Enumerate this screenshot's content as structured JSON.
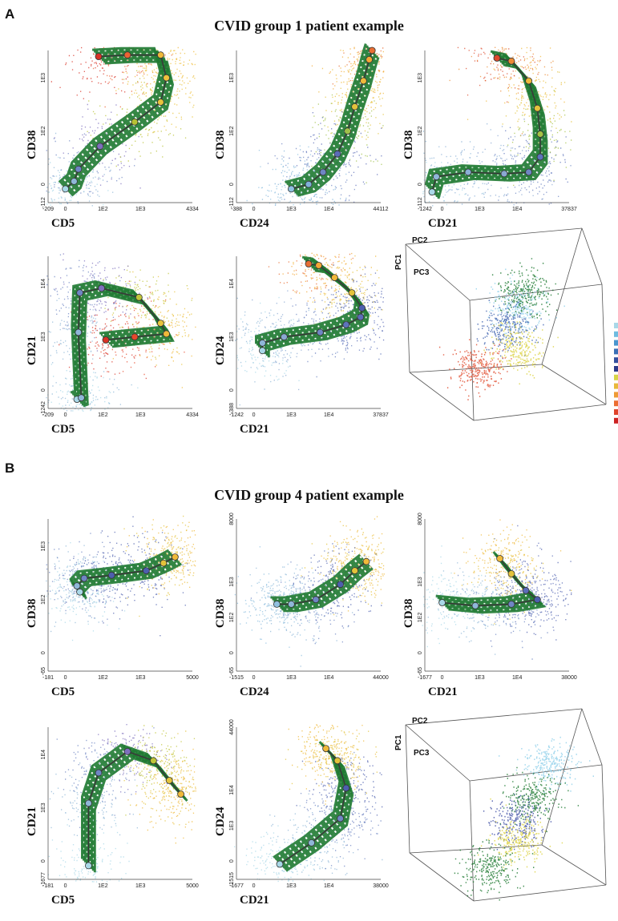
{
  "panels": [
    {
      "letter": "A",
      "title": "CVID group 1 patient example",
      "chart_data": [
        {
          "type": "scatter",
          "xlabel": "CD5",
          "ylabel": "CD38",
          "xticks": [
            "-209",
            "0",
            "1E2",
            "1E3",
            "4334"
          ],
          "yticks": [
            "-112",
            "0",
            "1E2",
            "1E3"
          ],
          "trajectory": [
            [
              0.12,
              0.09
            ],
            [
              0.18,
              0.14
            ],
            [
              0.21,
              0.22
            ],
            [
              0.36,
              0.37
            ],
            [
              0.6,
              0.53
            ],
            [
              0.78,
              0.66
            ],
            [
              0.82,
              0.82
            ],
            [
              0.78,
              0.97
            ],
            [
              0.55,
              0.97
            ],
            [
              0.35,
              0.96
            ]
          ],
          "trajectory_colors": [
            "#a9d8e8",
            "#8fb7d8",
            "#6f86c4",
            "#7e6fbd",
            "#b8c234",
            "#e7c43c",
            "#efc23d",
            "#f0b93a",
            "#ec6433",
            "#d93226"
          ]
        },
        {
          "type": "scatter",
          "xlabel": "CD24",
          "ylabel": "CD38",
          "xticks": [
            "-388",
            "0",
            "1E3",
            "1E4",
            "44112"
          ],
          "yticks": [
            "-112",
            "0",
            "1E2",
            "1E3"
          ],
          "trajectory": [
            [
              0.38,
              0.09
            ],
            [
              0.5,
              0.12
            ],
            [
              0.6,
              0.2
            ],
            [
              0.7,
              0.32
            ],
            [
              0.77,
              0.47
            ],
            [
              0.82,
              0.63
            ],
            [
              0.88,
              0.8
            ],
            [
              0.92,
              0.94
            ],
            [
              0.94,
              1.0
            ]
          ],
          "trajectory_colors": [
            "#8fc0df",
            "#7fb0d8",
            "#6f86c4",
            "#5b6cb8",
            "#a0c14a",
            "#e3c33b",
            "#f0b93a",
            "#f3a735",
            "#e86e33"
          ]
        },
        {
          "type": "scatter",
          "xlabel": "CD21",
          "ylabel": "CD38",
          "xticks": [
            "-1242",
            "0",
            "1E3",
            "1E4",
            "37837"
          ],
          "yticks": [
            "-112",
            "0",
            "1E2",
            "1E3"
          ],
          "trajectory": [
            [
              0.05,
              0.07
            ],
            [
              0.08,
              0.17
            ],
            [
              0.3,
              0.2
            ],
            [
              0.55,
              0.19
            ],
            [
              0.72,
              0.2
            ],
            [
              0.8,
              0.3
            ],
            [
              0.8,
              0.45
            ],
            [
              0.78,
              0.62
            ],
            [
              0.72,
              0.8
            ],
            [
              0.6,
              0.93
            ],
            [
              0.5,
              0.95
            ]
          ],
          "trajectory_colors": [
            "#a9d8e8",
            "#8fb7d8",
            "#8ab0d6",
            "#8aa8d2",
            "#6f86c4",
            "#5d74bc",
            "#a5c245",
            "#e2c33c",
            "#f0b93a",
            "#ec8b35",
            "#dd4a2c"
          ]
        },
        {
          "type": "scatter",
          "xlabel": "CD5",
          "ylabel": "CD21",
          "xticks": [
            "-209",
            "0",
            "1E2",
            "1E3",
            "4334"
          ],
          "yticks": [
            "-1242",
            "0",
            "1E3",
            "1E4"
          ],
          "trajectory": [
            [
              0.2,
              0.06
            ],
            [
              0.23,
              0.07
            ],
            [
              0.21,
              0.5
            ],
            [
              0.22,
              0.76
            ],
            [
              0.37,
              0.79
            ],
            [
              0.63,
              0.73
            ],
            [
              0.78,
              0.56
            ],
            [
              0.82,
              0.49
            ],
            [
              0.6,
              0.47
            ],
            [
              0.4,
              0.45
            ]
          ],
          "trajectory_colors": [
            "#a9d8e8",
            "#8fb7d8",
            "#8fb7d8",
            "#6f86c4",
            "#7e6fbd",
            "#c0c53a",
            "#e8c43c",
            "#f0b93a",
            "#e6492c",
            "#d93226"
          ]
        },
        {
          "type": "scatter",
          "xlabel": "CD21",
          "ylabel": "CD24",
          "xticks": [
            "-1242",
            "0",
            "1E3",
            "1E4",
            "37837"
          ],
          "yticks": [
            "-388",
            "0",
            "1E3",
            "1E4"
          ],
          "trajectory": [
            [
              0.18,
              0.38
            ],
            [
              0.18,
              0.43
            ],
            [
              0.33,
              0.47
            ],
            [
              0.58,
              0.5
            ],
            [
              0.76,
              0.55
            ],
            [
              0.86,
              0.6
            ],
            [
              0.87,
              0.66
            ],
            [
              0.8,
              0.76
            ],
            [
              0.68,
              0.86
            ],
            [
              0.57,
              0.94
            ],
            [
              0.5,
              0.95
            ]
          ],
          "trajectory_colors": [
            "#a9d8e8",
            "#8fb7d8",
            "#8aa8d2",
            "#6f86c4",
            "#5d74bc",
            "#5b6cb8",
            "#4d5fae",
            "#e3c33b",
            "#f0b93a",
            "#f3a735",
            "#e86e33"
          ]
        }
      ],
      "pca": {
        "type": "scatter3d",
        "labels": [
          "PC2",
          "PC1",
          "PC3"
        ]
      }
    },
    {
      "letter": "B",
      "title": "CVID group 4 patient example",
      "chart_data": [
        {
          "type": "scatter",
          "xlabel": "CD5",
          "ylabel": "CD38",
          "xticks": [
            "-181",
            "0",
            "1E2",
            "1E3",
            "5000"
          ],
          "yticks": [
            "-65",
            "0",
            "1E2",
            "1E3"
          ],
          "trajectory": [
            [
              0.22,
              0.52
            ],
            [
              0.2,
              0.56
            ],
            [
              0.25,
              0.61
            ],
            [
              0.44,
              0.63
            ],
            [
              0.68,
              0.66
            ],
            [
              0.8,
              0.71
            ],
            [
              0.88,
              0.75
            ]
          ],
          "trajectory_colors": [
            "#a9d8e8",
            "#8fb7d8",
            "#6f86c4",
            "#4d5fae",
            "#4d5fae",
            "#e3c33b",
            "#f0b93a"
          ]
        },
        {
          "type": "scatter",
          "xlabel": "CD24",
          "ylabel": "CD38",
          "xticks": [
            "-1515",
            "0",
            "1E3",
            "1E4",
            "44000"
          ],
          "yticks": [
            "-65",
            "0",
            "1E2",
            "1E3",
            "8000"
          ],
          "trajectory": [
            [
              0.28,
              0.44
            ],
            [
              0.38,
              0.44
            ],
            [
              0.55,
              0.47
            ],
            [
              0.72,
              0.57
            ],
            [
              0.82,
              0.66
            ],
            [
              0.9,
              0.72
            ]
          ],
          "trajectory_colors": [
            "#8fc0df",
            "#8fb7d8",
            "#6f86c4",
            "#4d5fae",
            "#e3c33b",
            "#f0b93a"
          ]
        },
        {
          "type": "scatter",
          "xlabel": "CD21",
          "ylabel": "CD38",
          "xticks": [
            "-1677",
            "0",
            "1E3",
            "1E4",
            "38000"
          ],
          "yticks": [
            "-65",
            "0",
            "1E2",
            "1E3",
            "8000"
          ],
          "trajectory": [
            [
              0.12,
              0.45
            ],
            [
              0.35,
              0.43
            ],
            [
              0.6,
              0.44
            ],
            [
              0.78,
              0.47
            ],
            [
              0.7,
              0.53
            ],
            [
              0.6,
              0.64
            ],
            [
              0.52,
              0.74
            ]
          ],
          "trajectory_colors": [
            "#a9d8e8",
            "#8fb7d8",
            "#6f86c4",
            "#4d5fae",
            "#5b6cb8",
            "#e3c33b",
            "#f0b93a"
          ]
        },
        {
          "type": "scatter",
          "xlabel": "CD5",
          "ylabel": "CD21",
          "xticks": [
            "-181",
            "0",
            "1E2",
            "1E3",
            "5000"
          ],
          "yticks": [
            "-1677",
            "0",
            "1E3",
            "1E4"
          ],
          "trajectory": [
            [
              0.28,
              0.09
            ],
            [
              0.28,
              0.5
            ],
            [
              0.35,
              0.7
            ],
            [
              0.55,
              0.84
            ],
            [
              0.73,
              0.78
            ],
            [
              0.84,
              0.65
            ],
            [
              0.92,
              0.56
            ]
          ],
          "trajectory_colors": [
            "#a9d8e8",
            "#8fb7d8",
            "#6f86c4",
            "#7e6fbd",
            "#c0c53a",
            "#e3c33b",
            "#f0b93a"
          ]
        },
        {
          "type": "scatter",
          "xlabel": "CD21",
          "ylabel": "CD24",
          "xticks": [
            "-1677",
            "0",
            "1E3",
            "1E4",
            "38000"
          ],
          "yticks": [
            "-1515",
            "0",
            "1E3",
            "1E4",
            "44000"
          ],
          "trajectory": [
            [
              0.3,
              0.1
            ],
            [
              0.52,
              0.24
            ],
            [
              0.72,
              0.4
            ],
            [
              0.76,
              0.6
            ],
            [
              0.7,
              0.78
            ],
            [
              0.62,
              0.86
            ]
          ],
          "trajectory_colors": [
            "#a9d8e8",
            "#8fb7d8",
            "#6f86c4",
            "#4d5fae",
            "#e3c33b",
            "#f0b93a"
          ]
        }
      ],
      "pca": {
        "type": "scatter3d",
        "labels": [
          "PC2",
          "PC1",
          "PC3"
        ]
      }
    }
  ],
  "colorbar": [
    "#a9d8e8",
    "#6fbce0",
    "#4a96cf",
    "#3b6fb6",
    "#334f9e",
    "#2c3a8a",
    "#d8d546",
    "#e8b93a",
    "#ee9b36",
    "#ec6e33",
    "#e0442c",
    "#cc2222"
  ]
}
